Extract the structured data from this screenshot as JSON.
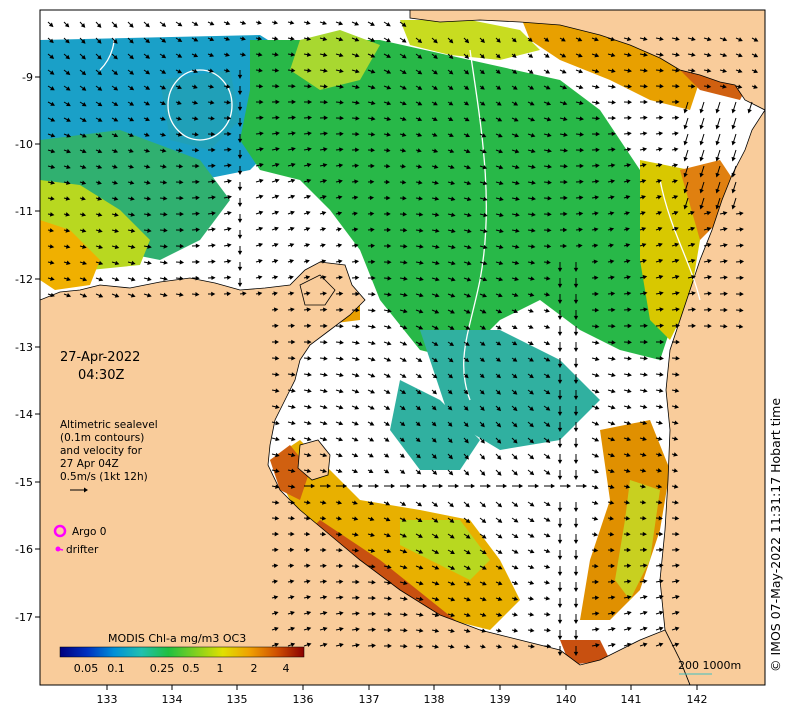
{
  "timestamp": {
    "date": "27-Apr-2022",
    "time": "04:30Z"
  },
  "legend": {
    "lines": [
      "Altimetric sealevel",
      "(0.1m contours)",
      "and velocity for",
      "27 Apr 04Z",
      "0.5m/s (1kt 12h)"
    ],
    "argo_label": "Argo 0",
    "drifter_label": "drifter",
    "argo_color": "#ff00ff",
    "drifter_color": "#ff00ff"
  },
  "colorbar": {
    "title": "MODIS Chl-a mg/m3 OC3",
    "ticks": [
      "0.05",
      "0.1",
      "0.25",
      "0.5",
      "1",
      "2",
      "4"
    ],
    "colors": [
      "#00007f",
      "#0030c0",
      "#0090d8",
      "#20c0b0",
      "#20c040",
      "#80d020",
      "#e0e000",
      "#f0a000",
      "#d05000",
      "#8b0000"
    ]
  },
  "axes": {
    "lon_ticks": [
      "133",
      "134",
      "135",
      "136",
      "137",
      "138",
      "139",
      "140",
      "141",
      "142"
    ],
    "lat_ticks": [
      "-9",
      "-10",
      "-11",
      "-12",
      "-13",
      "-14",
      "-15",
      "-16",
      "-17"
    ]
  },
  "scale_bar": {
    "label": "200  1000m"
  },
  "credit": "© IMOS 07-May-2022 11:31:17 Hobart time",
  "colors": {
    "land": "#f9cc9b",
    "ocean_nodata": "#ffffff",
    "contour": "#ffffff"
  }
}
